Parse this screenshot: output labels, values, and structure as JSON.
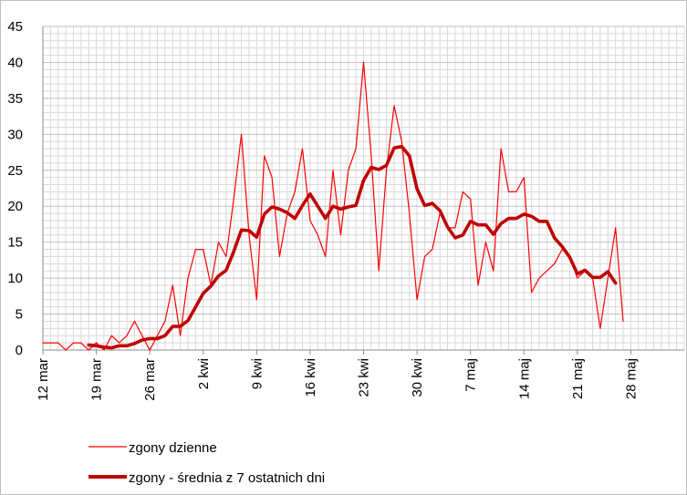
{
  "chart_data": {
    "type": "line",
    "y_ticks": [
      "0",
      "5",
      "10",
      "15",
      "20",
      "25",
      "30",
      "35",
      "40",
      "45"
    ],
    "ylim": [
      0,
      45
    ],
    "x_tick_labels": [
      "12 mar",
      "19 mar",
      "26 mar",
      "2 kwi",
      "9 kwi",
      "16 kwi",
      "23 kwi",
      "30 kwi",
      "7 maj",
      "14 maj",
      "21 maj",
      "28 maj"
    ],
    "x_tick_day_index": [
      0,
      7,
      14,
      21,
      28,
      35,
      42,
      49,
      56,
      63,
      70,
      77
    ],
    "day_span": [
      0,
      84
    ],
    "grid": true,
    "legend_position": "bottom-left",
    "series": [
      {
        "name": "zgony dzienne",
        "color": "#ff0000",
        "style": "thin",
        "start_day_index": 0,
        "values": [
          1,
          1,
          1,
          0,
          1,
          1,
          0,
          1,
          0,
          2,
          1,
          2,
          4,
          2,
          0,
          2,
          4,
          9,
          2,
          10,
          14,
          14,
          9,
          15,
          13,
          21,
          30,
          16,
          7,
          27,
          24,
          13,
          19,
          22,
          28,
          18,
          16,
          13,
          25,
          16,
          25,
          28,
          40,
          27,
          11,
          25,
          34,
          29,
          19,
          7,
          13,
          14,
          19,
          17,
          17,
          22,
          21,
          9,
          15,
          11,
          28,
          22,
          22,
          24,
          8,
          10,
          11,
          12,
          14,
          13,
          10,
          11,
          10,
          3,
          10,
          17,
          4
        ]
      },
      {
        "name": "zgony - średnia z 7 ostatnich dni",
        "color": "#c00000",
        "style": "thick",
        "start_day_index": 6,
        "values": [
          0.7,
          0.6,
          0.4,
          0.3,
          0.6,
          0.6,
          0.9,
          1.4,
          1.6,
          1.6,
          2.0,
          3.3,
          3.3,
          4.1,
          6.0,
          7.9,
          8.9,
          10.3,
          11.1,
          13.7,
          16.7,
          16.6,
          15.7,
          18.9,
          19.9,
          19.6,
          19.1,
          18.3,
          20.1,
          21.7,
          20.0,
          18.3,
          20.0,
          19.6,
          19.9,
          20.1,
          23.6,
          25.4,
          25.1,
          25.7,
          28.1,
          28.3,
          27.0,
          22.4,
          20.1,
          20.4,
          19.4,
          17.1,
          15.6,
          16.0,
          17.9,
          17.4,
          17.4,
          16.1,
          17.6,
          18.3,
          18.3,
          18.9,
          18.6,
          17.9,
          17.9,
          15.6,
          14.4,
          12.9,
          10.6,
          11.1,
          10.1,
          10.1,
          10.9,
          9.3
        ]
      }
    ]
  }
}
